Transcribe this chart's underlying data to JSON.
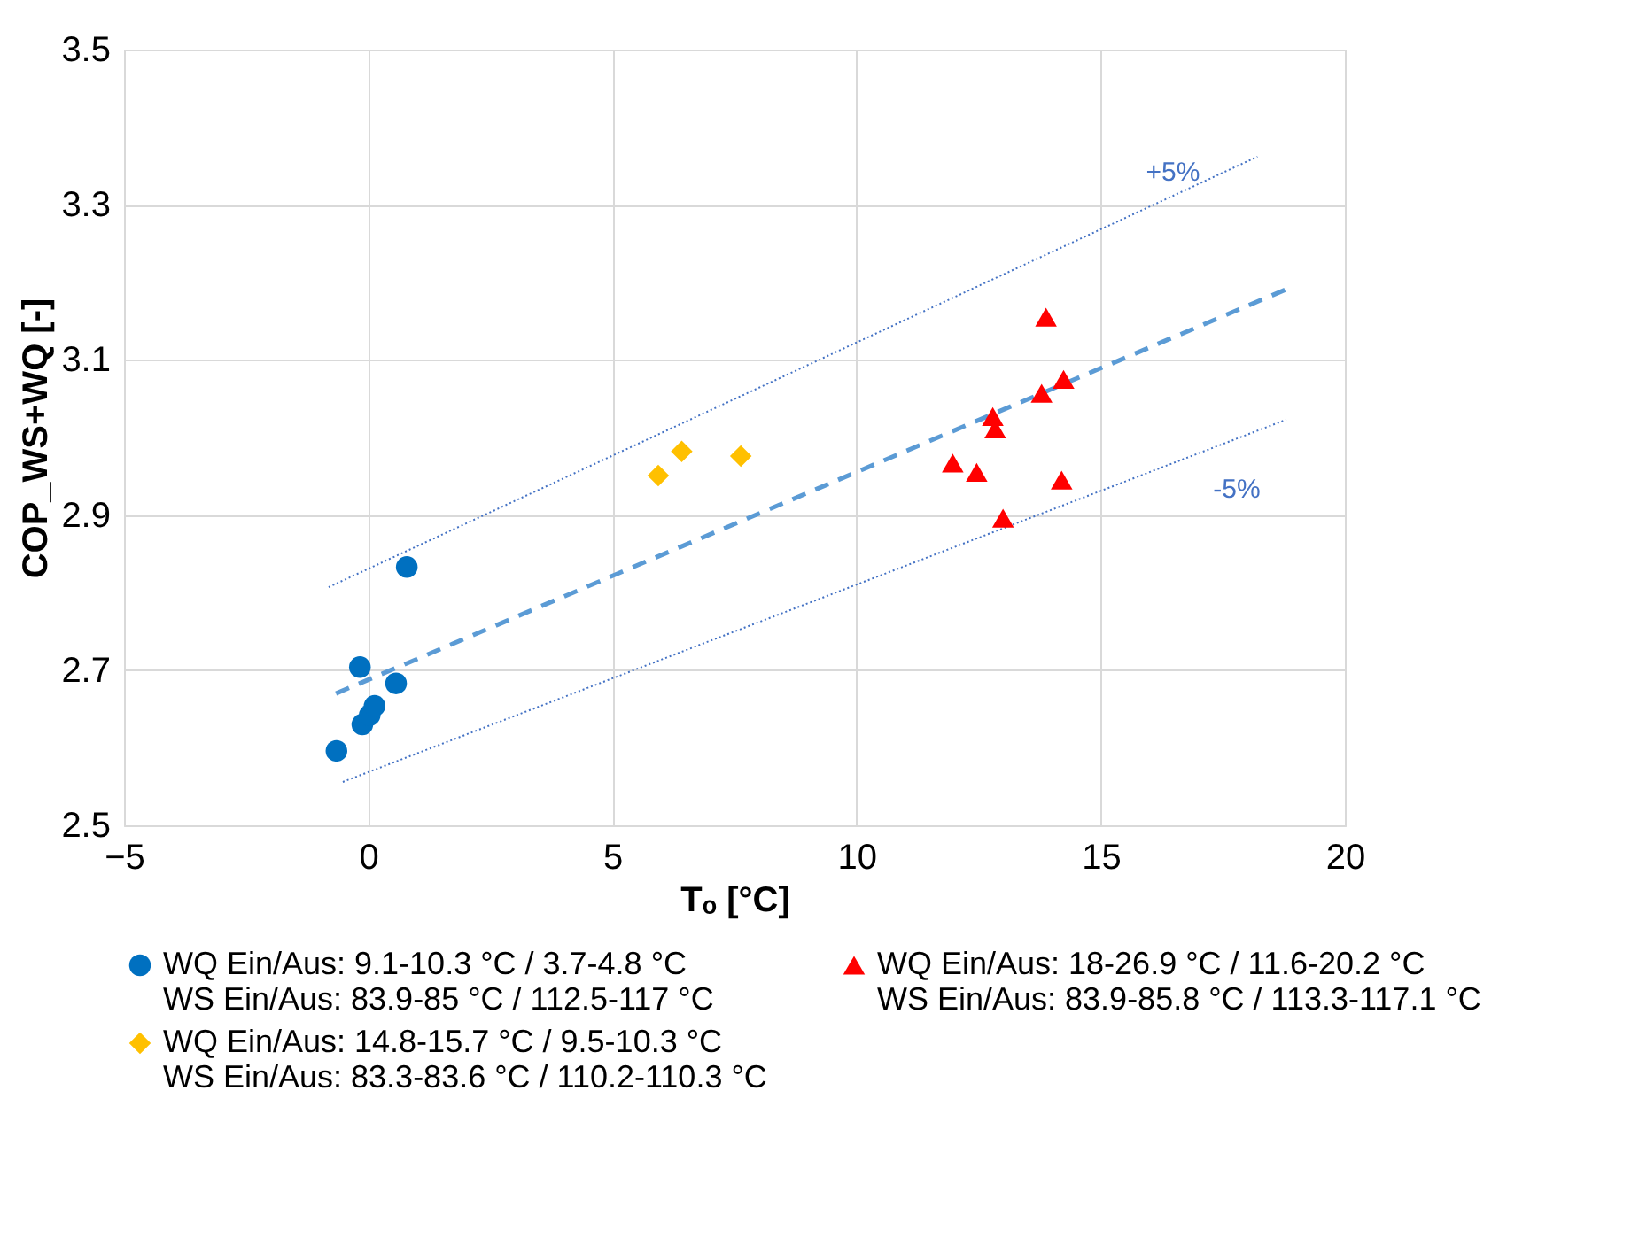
{
  "chart_data": {
    "type": "scatter",
    "xlabel": "Tₒ [°C]",
    "ylabel": "COP_WS+WQ [-]",
    "xlim": [
      -5,
      20
    ],
    "xticks": [
      -5,
      0,
      5,
      10,
      15,
      20
    ],
    "ylim": [
      2.5,
      3.5
    ],
    "yticks": [
      2.5,
      2.7,
      2.9,
      3.1,
      3.3,
      3.5
    ],
    "grid": true,
    "legend": "bottom",
    "series": [
      {
        "name": "WQ Ein/Aus: 9.1-10.3 °C / 3.7-4.8 °C\nWS Ein/Aus: 83.9-85 °C / 112.5-117 °C",
        "color": "#0070c0",
        "marker": "circle",
        "x": [
          -0.65,
          -0.17,
          -0.12,
          0.03,
          0.13,
          0.57,
          0.79
        ],
        "values": [
          2.596,
          2.704,
          2.63,
          2.642,
          2.654,
          2.683,
          2.833
        ]
      },
      {
        "name": "WQ Ein/Aus: 18-26.9 °C / 11.6-20.2 °C\nWS Ein/Aus: 83.9-85.8 °C / 113.3-117.1 °C",
        "color": "#ff0000",
        "marker": "triangle",
        "x": [
          13.88,
          14.24,
          13.79,
          12.79,
          12.84,
          11.97,
          12.46,
          14.2,
          13.0
        ],
        "values": [
          3.155,
          3.075,
          3.057,
          3.027,
          3.011,
          2.967,
          2.955,
          2.945,
          2.896
        ]
      },
      {
        "name": "WQ Ein/Aus: 14.8-15.7 °C / 9.5-10.3 °C\nWS Ein/Aus: 83.3-83.6 °C / 110.2-110.3 °C",
        "color": "#ffc000",
        "marker": "diamond",
        "x": [
          5.94,
          6.42,
          7.63
        ],
        "values": [
          2.951,
          2.982,
          2.976
        ]
      },
      {
        "type": "line",
        "color": "#5b9bd5",
        "line_style": "dashed",
        "x": [
          -0.66,
          18.8
        ],
        "values": [
          2.67,
          3.191
        ]
      },
      {
        "type": "line",
        "color": "#4472c4",
        "line_style": "dotted",
        "x": [
          -0.81,
          18.21
        ],
        "values": [
          2.807,
          3.362
        ]
      },
      {
        "type": "line",
        "color": "#4472c4",
        "line_style": "dotted",
        "x": [
          -0.52,
          18.8
        ],
        "values": [
          2.556,
          3.023
        ]
      }
    ],
    "annotations": [
      "+5%",
      "-5%"
    ]
  }
}
